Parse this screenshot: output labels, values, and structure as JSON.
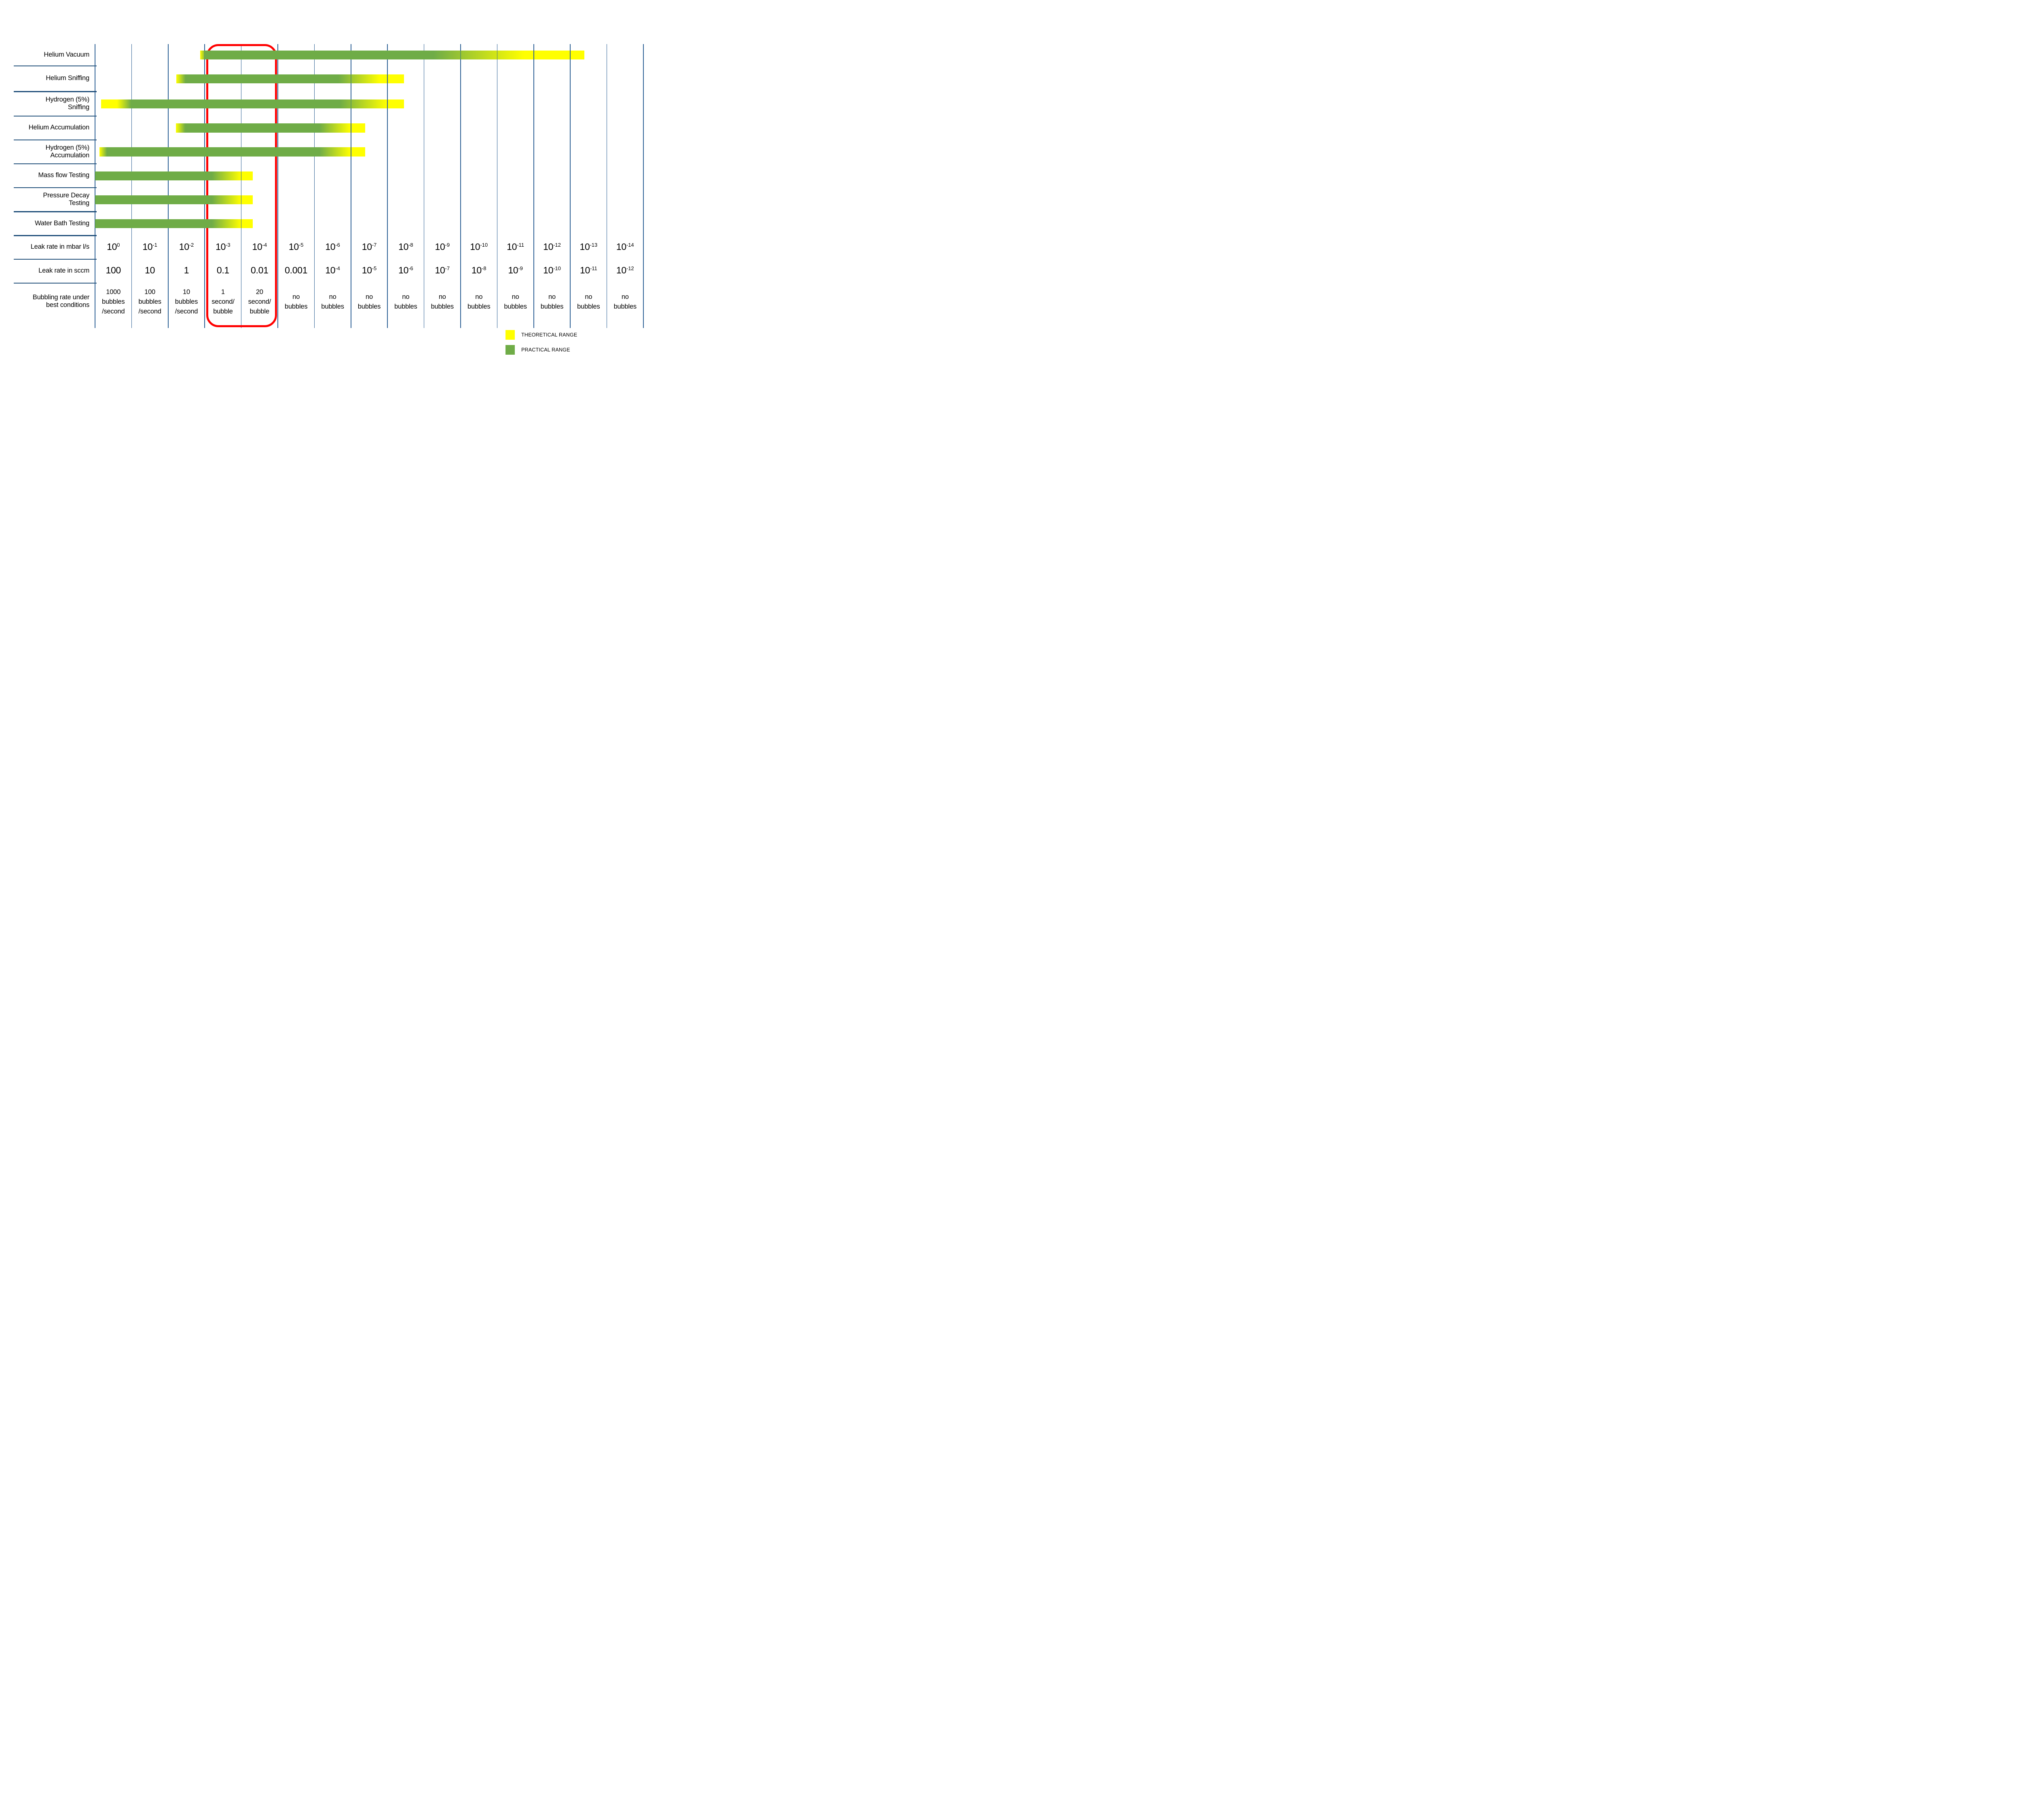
{
  "colors": {
    "practical_green": "#6FAC47",
    "theoretical_yellow": "#FFFF00",
    "grid_vertical": "#2B5F94",
    "grid_horizontal": "#1F4E79",
    "highlight_red": "#FF0000",
    "text": "#000000"
  },
  "rows": [
    {
      "name": "helium-vacuum",
      "label_lines": [
        "Helium Vacuum"
      ],
      "bar": {
        "start_col": 2.88,
        "end_col": 13.38,
        "fade": [
          0,
          1.4,
          60.7,
          84.3
        ]
      }
    },
    {
      "name": "helium-sniffing",
      "label_lines": [
        "Helium Sniffing"
      ],
      "bar": {
        "start_col": 2.22,
        "end_col": 8.45,
        "fade": [
          0,
          4.0,
          71.2,
          89.3
        ]
      }
    },
    {
      "name": "hydrogen-sniffing",
      "label_lines": [
        "Hydrogen (5%)",
        "Sniffing"
      ],
      "bar": {
        "start_col": 0.17,
        "end_col": 8.45,
        "fade": [
          5.3,
          9.9,
          78.8,
          94.3
        ]
      }
    },
    {
      "name": "helium-accumulation",
      "label_lines": [
        "Helium Accumulation"
      ],
      "bar": {
        "start_col": 2.21,
        "end_col": 7.39,
        "fade": [
          0,
          4.9,
          75.9,
          92.1
        ]
      }
    },
    {
      "name": "hydrogen-accumulation",
      "label_lines": [
        "Hydrogen (5%)",
        "Accumulation"
      ],
      "bar": {
        "start_col": 0.12,
        "end_col": 7.39,
        "fade": [
          0,
          2.8,
          82.8,
          94.4
        ]
      }
    },
    {
      "name": "mass-flow-testing",
      "label_lines": [
        "Mass flow Testing"
      ],
      "bar": {
        "start_col": 0,
        "end_col": 4.31,
        "fade": [
          0,
          0,
          74.1,
          92.6
        ]
      }
    },
    {
      "name": "pressure-decay-testing",
      "label_lines": [
        "Pressure Decay",
        "Testing"
      ],
      "bar": {
        "start_col": 0,
        "end_col": 4.31,
        "fade": [
          0,
          0,
          74.1,
          92.6
        ]
      }
    },
    {
      "name": "water-bath-testing",
      "label_lines": [
        "Water Bath Testing"
      ],
      "bar": {
        "start_col": 0,
        "end_col": 4.31,
        "fade": [
          0,
          0,
          74.1,
          92.6
        ]
      }
    }
  ],
  "footer": {
    "mbar_label_lines": [
      "Leak rate in mbar l/s"
    ],
    "mbar_cells": [
      {
        "b": "10",
        "s": "0"
      },
      {
        "b": "10",
        "s": "-1"
      },
      {
        "b": "10",
        "s": "-2"
      },
      {
        "b": "10",
        "s": "-3"
      },
      {
        "b": "10",
        "s": "-4"
      },
      {
        "b": "10",
        "s": "-5"
      },
      {
        "b": "10",
        "s": "-6"
      },
      {
        "b": "10",
        "s": "-7"
      },
      {
        "b": "10",
        "s": "-8"
      },
      {
        "b": "10",
        "s": "-9"
      },
      {
        "b": "10",
        "s": "-10"
      },
      {
        "b": "10",
        "s": "-11"
      },
      {
        "b": "10",
        "s": "-12"
      },
      {
        "b": "10",
        "s": "-13"
      },
      {
        "b": "10",
        "s": "-14"
      }
    ],
    "sccm_label_lines": [
      "Leak rate in sccm"
    ],
    "sccm_cells": [
      {
        "t": "100"
      },
      {
        "t": "10"
      },
      {
        "t": "1"
      },
      {
        "t": "0.1"
      },
      {
        "t": "0.01"
      },
      {
        "t": "0.001"
      },
      {
        "b": "10",
        "s": "-4"
      },
      {
        "b": "10",
        "s": "-5"
      },
      {
        "b": "10",
        "s": "-6"
      },
      {
        "b": "10",
        "s": "-7"
      },
      {
        "b": "10",
        "s": "-8"
      },
      {
        "b": "10",
        "s": "-9"
      },
      {
        "b": "10",
        "s": "-10"
      },
      {
        "b": "10",
        "s": "-11"
      },
      {
        "b": "10",
        "s": "-12"
      }
    ],
    "bubbling_label_lines": [
      "Bubbling rate under",
      "best conditions"
    ],
    "bubbling_cells": [
      {
        "lines": [
          "1000",
          "bubbles",
          "/second"
        ]
      },
      {
        "lines": [
          "100",
          "bubbles",
          "/second"
        ]
      },
      {
        "lines": [
          "10",
          "bubbles",
          "/second"
        ]
      },
      {
        "lines": [
          "1",
          "second/",
          "bubble"
        ]
      },
      {
        "lines": [
          "20",
          "second/",
          "bubble"
        ]
      },
      {
        "lines": [
          "no",
          "bubbles"
        ]
      },
      {
        "lines": [
          "no",
          "bubbles"
        ]
      },
      {
        "lines": [
          "no",
          "bubbles"
        ]
      },
      {
        "lines": [
          "no",
          "bubbles"
        ]
      },
      {
        "lines": [
          "no",
          "bubbles"
        ]
      },
      {
        "lines": [
          "no",
          "bubbles"
        ]
      },
      {
        "lines": [
          "no",
          "bubbles"
        ]
      },
      {
        "lines": [
          "no",
          "bubbles"
        ]
      },
      {
        "lines": [
          "no",
          "bubbles"
        ]
      },
      {
        "lines": [
          "no",
          "bubbles"
        ]
      }
    ]
  },
  "legend": {
    "items": [
      {
        "label": "THEORETICAL RANGE",
        "color_key": "theoretical_yellow"
      },
      {
        "label": "PRACTICAL RANGE",
        "color_key": "practical_green"
      }
    ]
  },
  "highlight": {
    "start_col": 3,
    "end_col": 5,
    "columns_highlighted": [
      "10-3",
      "10-4"
    ]
  },
  "chart_data": {
    "type": "bar",
    "subtype": "horizontal-range-bars",
    "title": "",
    "x_axis_rows": {
      "leak_rate_mbar_l_s": [
        "10^0",
        "10^-1",
        "10^-2",
        "10^-3",
        "10^-4",
        "10^-5",
        "10^-6",
        "10^-7",
        "10^-8",
        "10^-9",
        "10^-10",
        "10^-11",
        "10^-12",
        "10^-13",
        "10^-14"
      ],
      "leak_rate_sccm": [
        "100",
        "10",
        "1",
        "0.1",
        "0.01",
        "0.001",
        "10^-4",
        "10^-5",
        "10^-6",
        "10^-7",
        "10^-8",
        "10^-9",
        "10^-10",
        "10^-11",
        "10^-12"
      ],
      "bubbling_rate_under_best_conditions": [
        "1000 bubbles/second",
        "100 bubbles/second",
        "10 bubbles/second",
        "1 second/bubble",
        "20 second/bubble",
        "no bubbles",
        "no bubbles",
        "no bubbles",
        "no bubbles",
        "no bubbles",
        "no bubbles",
        "no bubbles",
        "no bubbles",
        "no bubbles",
        "no bubbles"
      ]
    },
    "series": [
      {
        "name": "Helium Vacuum",
        "practical_range_mbar_l_s": [
          "1e-3",
          "1e-10"
        ],
        "theoretical_range_mbar_l_s": [
          "1e-3",
          "1e-13"
        ]
      },
      {
        "name": "Helium Sniffing",
        "practical_range_mbar_l_s": [
          "1e-2",
          "1e-7"
        ],
        "theoretical_range_mbar_l_s": [
          "1e-2",
          "1e-8"
        ]
      },
      {
        "name": "Hydrogen (5%) Sniffing",
        "practical_range_mbar_l_s": [
          "1e0",
          "1e-7"
        ],
        "theoretical_range_mbar_l_s": [
          "1e0",
          "1e-8"
        ]
      },
      {
        "name": "Helium Accumulation",
        "practical_range_mbar_l_s": [
          "1e-2",
          "1e-6"
        ],
        "theoretical_range_mbar_l_s": [
          "1e-2",
          "1e-7"
        ]
      },
      {
        "name": "Hydrogen (5%) Accumulation",
        "practical_range_mbar_l_s": [
          "1e0",
          "1e-6"
        ],
        "theoretical_range_mbar_l_s": [
          "1e0",
          "1e-7"
        ]
      },
      {
        "name": "Mass flow Testing",
        "practical_range_mbar_l_s": [
          "1e0",
          "1e-3"
        ],
        "theoretical_range_mbar_l_s": [
          "1e0",
          "1e-4"
        ]
      },
      {
        "name": "Pressure Decay Testing",
        "practical_range_mbar_l_s": [
          "1e0",
          "1e-3"
        ],
        "theoretical_range_mbar_l_s": [
          "1e0",
          "1e-4"
        ]
      },
      {
        "name": "Water Bath Testing",
        "practical_range_mbar_l_s": [
          "1e0",
          "1e-3"
        ],
        "theoretical_range_mbar_l_s": [
          "1e0",
          "1e-4"
        ]
      }
    ],
    "legend_entries": [
      "THEORETICAL RANGE",
      "PRACTICAL RANGE"
    ],
    "highlighted_columns": [
      "10^-3",
      "10^-4"
    ],
    "grid": "vertical decade columns",
    "legend_position": "bottom-right"
  }
}
